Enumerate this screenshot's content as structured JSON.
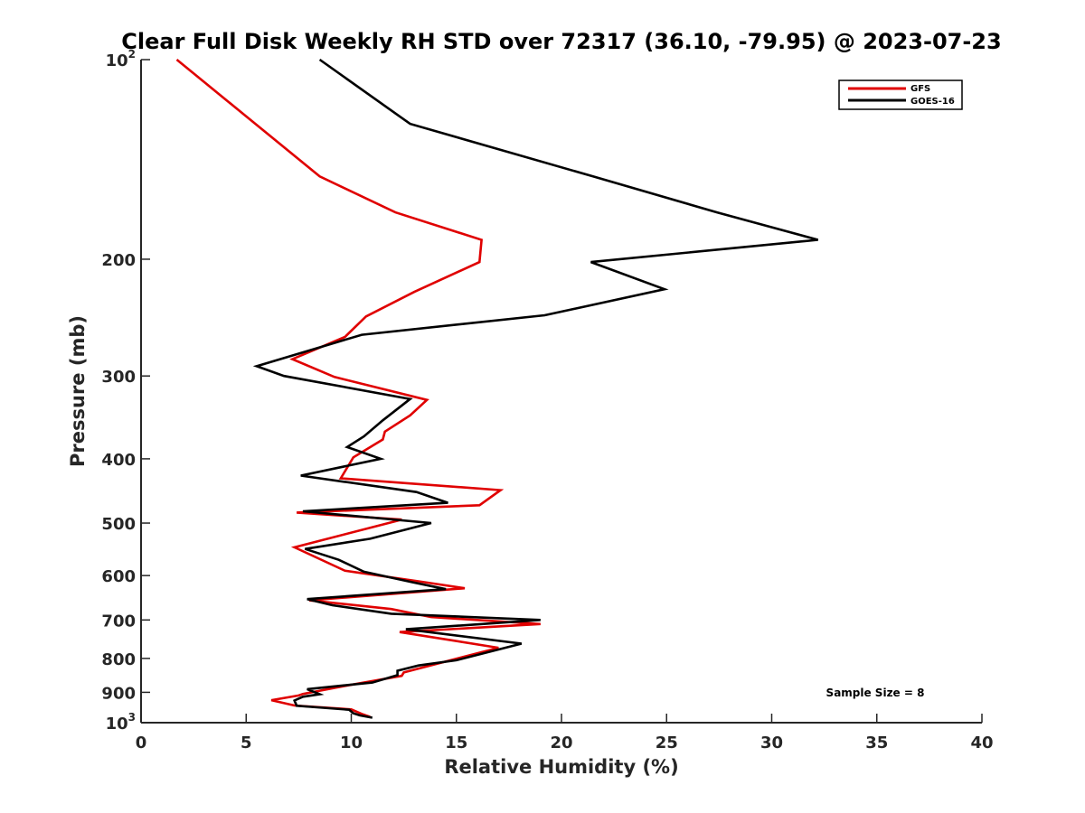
{
  "chart_data": {
    "type": "line",
    "title": "Clear Full Disk Weekly RH STD over 72317 (36.10, -79.95) @ 2023-07-23",
    "xlabel": "Relative Humidity (%)",
    "ylabel": "Pressure (mb)",
    "xlim": [
      0,
      40
    ],
    "ylim": [
      100,
      1000
    ],
    "y_scale": "log",
    "y_reversed": true,
    "grid": false,
    "legend_position": "top-right",
    "x_ticks": [
      0,
      5,
      10,
      15,
      20,
      25,
      30,
      35,
      40
    ],
    "x_tick_labels": [
      "0",
      "5",
      "10",
      "15",
      "20",
      "25",
      "30",
      "35",
      "40"
    ],
    "y_ticks": [
      100,
      200,
      300,
      400,
      500,
      600,
      700,
      800,
      900,
      1000
    ],
    "y_tick_labels": [
      {
        "base": "10",
        "exp": "2"
      },
      {
        "base": "200",
        "exp": ""
      },
      {
        "base": "300",
        "exp": ""
      },
      {
        "base": "400",
        "exp": ""
      },
      {
        "base": "500",
        "exp": ""
      },
      {
        "base": "600",
        "exp": ""
      },
      {
        "base": "700",
        "exp": ""
      },
      {
        "base": "800",
        "exp": ""
      },
      {
        "base": "900",
        "exp": ""
      },
      {
        "base": "10",
        "exp": "3"
      }
    ],
    "annotation": "Sample Size = 8",
    "series": [
      {
        "name": "GFS",
        "color": "#e00000",
        "points": [
          [
            1.7,
            100
          ],
          [
            8.5,
            150
          ],
          [
            12.1,
            170
          ],
          [
            16.2,
            187
          ],
          [
            16.1,
            202
          ],
          [
            13.0,
            224
          ],
          [
            10.7,
            244
          ],
          [
            9.7,
            262
          ],
          [
            7.2,
            283
          ],
          [
            9.2,
            301
          ],
          [
            13.6,
            326
          ],
          [
            12.8,
            344
          ],
          [
            11.6,
            364
          ],
          [
            11.5,
            374
          ],
          [
            10.1,
            398
          ],
          [
            9.5,
            428
          ],
          [
            17.1,
            446
          ],
          [
            16.1,
            470
          ],
          [
            7.4,
            482
          ],
          [
            12.4,
            494
          ],
          [
            7.3,
            544
          ],
          [
            9.7,
            590
          ],
          [
            13.2,
            612
          ],
          [
            15.4,
            627
          ],
          [
            8.0,
            654
          ],
          [
            11.9,
            674
          ],
          [
            13.8,
            693
          ],
          [
            19.0,
            710
          ],
          [
            12.3,
            730
          ],
          [
            17.0,
            771
          ],
          [
            12.5,
            840
          ],
          [
            12.4,
            850
          ],
          [
            9.7,
            880
          ],
          [
            7.7,
            905
          ],
          [
            7.5,
            910
          ],
          [
            6.2,
            925
          ],
          [
            7.3,
            942
          ],
          [
            10.0,
            955
          ],
          [
            10.5,
            970
          ],
          [
            10.9,
            980
          ]
        ]
      },
      {
        "name": "GOES-16",
        "color": "#000000",
        "points": [
          [
            8.5,
            100
          ],
          [
            12.8,
            125
          ],
          [
            21.5,
            150
          ],
          [
            27.4,
            170
          ],
          [
            32.2,
            187
          ],
          [
            21.4,
            202
          ],
          [
            24.9,
            222
          ],
          [
            19.2,
            243
          ],
          [
            10.5,
            260
          ],
          [
            5.5,
            290
          ],
          [
            6.8,
            300
          ],
          [
            12.8,
            325
          ],
          [
            11.5,
            350
          ],
          [
            10.6,
            370
          ],
          [
            9.8,
            384
          ],
          [
            11.4,
            400
          ],
          [
            7.6,
            424
          ],
          [
            13.1,
            449
          ],
          [
            14.6,
            466
          ],
          [
            7.7,
            480
          ],
          [
            13.8,
            500
          ],
          [
            10.9,
            528
          ],
          [
            7.8,
            547
          ],
          [
            9.4,
            568
          ],
          [
            10.6,
            592
          ],
          [
            12.9,
            614
          ],
          [
            14.5,
            629
          ],
          [
            7.9,
            651
          ],
          [
            9.1,
            665
          ],
          [
            11.9,
            685
          ],
          [
            19.0,
            700
          ],
          [
            12.6,
            723
          ],
          [
            18.1,
            760
          ],
          [
            15.0,
            805
          ],
          [
            13.2,
            820
          ],
          [
            12.2,
            835
          ],
          [
            12.2,
            848
          ],
          [
            11.0,
            870
          ],
          [
            7.9,
            890
          ],
          [
            8.5,
            906
          ],
          [
            7.7,
            914
          ],
          [
            7.3,
            926
          ],
          [
            7.4,
            943
          ],
          [
            9.9,
            956
          ],
          [
            10.1,
            968
          ],
          [
            10.4,
            975
          ],
          [
            11.0,
            983
          ]
        ]
      }
    ]
  }
}
